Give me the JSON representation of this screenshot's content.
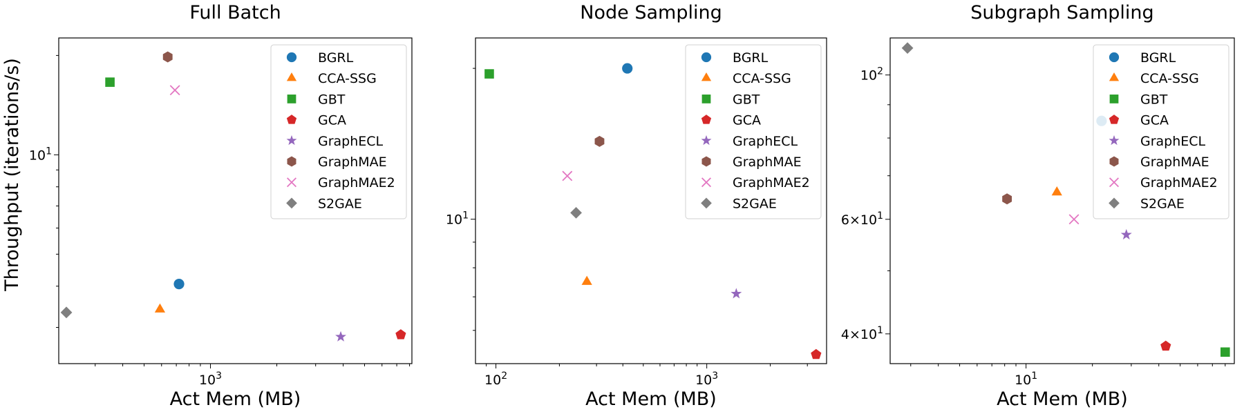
{
  "figure": {
    "ylabel": "Throughput (iterations/s)",
    "xlabel": "Act Mem (MB)"
  },
  "styles": {
    "BGRL": {
      "color": "#1f77b4",
      "marker": "circle"
    },
    "CCA-SSG": {
      "color": "#ff7f0e",
      "marker": "triangle"
    },
    "GBT": {
      "color": "#2ca02c",
      "marker": "square"
    },
    "GCA": {
      "color": "#d62728",
      "marker": "pentagon"
    },
    "GraphECL": {
      "color": "#9467bd",
      "marker": "star"
    },
    "GraphMAE": {
      "color": "#8c564b",
      "marker": "hexagon"
    },
    "GraphMAE2": {
      "color": "#e377c2",
      "marker": "x"
    },
    "S2GAE": {
      "color": "#7f7f7f",
      "marker": "diamond"
    }
  },
  "chart_data": [
    {
      "type": "scatter",
      "title": "Full Batch",
      "xlabel": "Act Mem (MB)",
      "ylabel": "Throughput (iterations/s)",
      "xscale": "log",
      "yscale": "log",
      "xlim": [
        205,
        8200
      ],
      "ylim": [
        2.33,
        22.6
      ],
      "xticks": [
        {
          "value": 1000,
          "label": "10^3"
        }
      ],
      "yticks": [
        {
          "value": 10,
          "label": "10^1"
        }
      ],
      "legend": "top-right",
      "grid": false,
      "series": [
        {
          "name": "BGRL",
          "x": [
            720
          ],
          "y": [
            4.06
          ]
        },
        {
          "name": "CCA-SSG",
          "x": [
            590
          ],
          "y": [
            3.4
          ]
        },
        {
          "name": "GBT",
          "x": [
            350
          ],
          "y": [
            16.6
          ]
        },
        {
          "name": "GCA",
          "x": [
            7300
          ],
          "y": [
            2.85
          ]
        },
        {
          "name": "GraphECL",
          "x": [
            3900
          ],
          "y": [
            2.81
          ]
        },
        {
          "name": "GraphMAE",
          "x": [
            640
          ],
          "y": [
            19.8
          ]
        },
        {
          "name": "GraphMAE2",
          "x": [
            690
          ],
          "y": [
            15.7
          ]
        },
        {
          "name": "S2GAE",
          "x": [
            222
          ],
          "y": [
            3.33
          ]
        }
      ]
    },
    {
      "type": "scatter",
      "title": "Node Sampling",
      "xlabel": "Act Mem (MB)",
      "ylabel": "",
      "xscale": "log",
      "yscale": "log",
      "xlim": [
        80,
        3700
      ],
      "ylim": [
        5.15,
        23.0
      ],
      "xticks": [
        {
          "value": 100,
          "label": "10^2"
        },
        {
          "value": 1000,
          "label": "10^3"
        }
      ],
      "yticks": [
        {
          "value": 10,
          "label": "10^1"
        }
      ],
      "legend": "top-right",
      "grid": false,
      "series": [
        {
          "name": "BGRL",
          "x": [
            420
          ],
          "y": [
            20.0
          ]
        },
        {
          "name": "CCA-SSG",
          "x": [
            270
          ],
          "y": [
            7.5
          ]
        },
        {
          "name": "GBT",
          "x": [
            93
          ],
          "y": [
            19.5
          ]
        },
        {
          "name": "GCA",
          "x": [
            3300
          ],
          "y": [
            5.37
          ]
        },
        {
          "name": "GraphECL",
          "x": [
            1380
          ],
          "y": [
            7.1
          ]
        },
        {
          "name": "GraphMAE",
          "x": [
            310
          ],
          "y": [
            14.3
          ]
        },
        {
          "name": "GraphMAE2",
          "x": [
            218
          ],
          "y": [
            12.2
          ]
        },
        {
          "name": "S2GAE",
          "x": [
            240
          ],
          "y": [
            10.3
          ]
        }
      ]
    },
    {
      "type": "scatter",
      "title": "Subgraph Sampling",
      "xlabel": "Act Mem (MB)",
      "ylabel": "",
      "xscale": "log",
      "yscale": "log",
      "xlim": [
        2.42,
        88
      ],
      "ylim": [
        36.0,
        114.0
      ],
      "xticks": [
        {
          "value": 10,
          "label": "10^1"
        }
      ],
      "yticks": [
        {
          "value": 40,
          "label": "4×10^1"
        },
        {
          "value": 60,
          "label": "6×10^1"
        },
        {
          "value": 100,
          "label": "10^2"
        }
      ],
      "legend": "top-right",
      "grid": false,
      "series": [
        {
          "name": "BGRL",
          "x": [
            22
          ],
          "y": [
            85.0
          ]
        },
        {
          "name": "CCA-SSG",
          "x": [
            13.8
          ],
          "y": [
            66.0
          ]
        },
        {
          "name": "GBT",
          "x": [
            80
          ],
          "y": [
            37.5
          ]
        },
        {
          "name": "GCA",
          "x": [
            43
          ],
          "y": [
            38.3
          ]
        },
        {
          "name": "GraphECL",
          "x": [
            28.5
          ],
          "y": [
            56.8
          ]
        },
        {
          "name": "GraphMAE",
          "x": [
            8.2
          ],
          "y": [
            64.5
          ]
        },
        {
          "name": "GraphMAE2",
          "x": [
            16.5
          ],
          "y": [
            60.0
          ]
        },
        {
          "name": "S2GAE",
          "x": [
            2.9
          ],
          "y": [
            110.0
          ]
        }
      ]
    }
  ]
}
